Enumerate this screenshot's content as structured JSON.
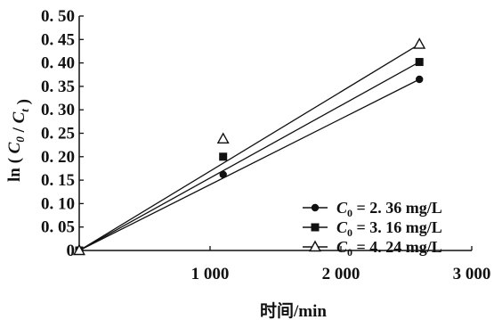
{
  "chart_data": {
    "type": "scatter",
    "title": "",
    "xlabel": "时间/min",
    "ylabel": "ln(C0/Ct)",
    "xlim": [
      0,
      3000
    ],
    "ylim": [
      0,
      0.5
    ],
    "xticks": [
      1000,
      2000,
      3000
    ],
    "xtick_labels": [
      "1 000",
      "2 000",
      "3 000"
    ],
    "yticks": [
      0,
      0.05,
      0.1,
      0.15,
      0.2,
      0.25,
      0.3,
      0.35,
      0.4,
      0.45,
      0.5
    ],
    "ytick_labels": [
      "0",
      "0. 05",
      "0. 10",
      "0. 15",
      "0. 20",
      "0. 25",
      "0. 30",
      "0. 35",
      "0. 40",
      "0. 45",
      "0. 50"
    ],
    "grid": false,
    "legend_position": "bottom-right",
    "series": [
      {
        "name": "C0 = 2. 36 mg/L",
        "legend_value": "= 2. 36 mg/L",
        "marker": "circle",
        "x": [
          0,
          1100,
          2600
        ],
        "y": [
          0,
          0.162,
          0.365
        ],
        "fit_end": [
          2600,
          0.365
        ]
      },
      {
        "name": "C0 = 3. 16 mg/L",
        "legend_value": "= 3. 16 mg/L",
        "marker": "square",
        "x": [
          0,
          1100,
          2600
        ],
        "y": [
          0,
          0.2,
          0.402
        ],
        "fit_end": [
          2600,
          0.402
        ]
      },
      {
        "name": "C0 = 4. 24 mg/L",
        "legend_value": "= 4. 24 mg/L",
        "marker": "triangle-open",
        "x": [
          0,
          1100,
          2600
        ],
        "y": [
          0,
          0.238,
          0.44
        ],
        "fit_end": [
          2600,
          0.44
        ]
      }
    ]
  }
}
